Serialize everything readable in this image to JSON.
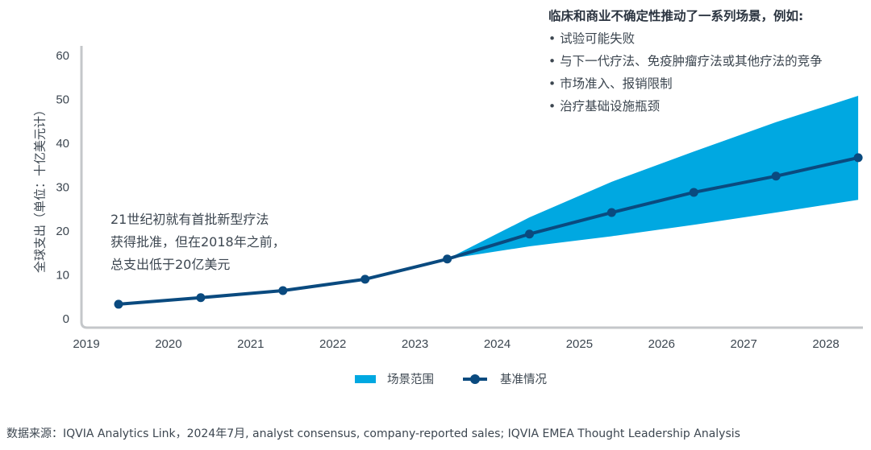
{
  "chart_data": {
    "type": "area",
    "title": "",
    "xlabel": "",
    "ylabel": "全球支出（单位：十亿美元计）",
    "ylim": [
      0,
      60
    ],
    "yticks": [
      0,
      10,
      20,
      30,
      40,
      50,
      60
    ],
    "xtick_labels": [
      "2019",
      "2020",
      "2021",
      "2022",
      "2023",
      "2024",
      "2025",
      "2026",
      "2027",
      "2028"
    ],
    "grid": false,
    "legend_position": "bottom-center",
    "series": [
      {
        "name": "基准情况",
        "type": "line",
        "color": "#0a4a7f",
        "x": [
          "2019",
          "2020",
          "2021",
          "2022",
          "2023",
          "2024",
          "2025",
          "2026",
          "2027",
          "2028"
        ],
        "values": [
          3.5,
          5.0,
          6.6,
          9.2,
          13.8,
          19.5,
          24.4,
          29.0,
          32.7,
          36.9
        ]
      },
      {
        "name": "场景范围",
        "type": "band",
        "color": "#00a8e1",
        "x": [
          "2023",
          "2024",
          "2025",
          "2026",
          "2027",
          "2028"
        ],
        "upper": [
          13.8,
          23.3,
          31.4,
          38.3,
          45.0,
          51.0
        ],
        "lower": [
          13.8,
          16.7,
          19.0,
          21.6,
          24.4,
          27.3
        ]
      }
    ],
    "annotations": {
      "callout_title": "临床和商业不确定性推动了一系列场景，例如:",
      "callout_items": [
        "试验可能失败",
        "与下一代疗法、免疫肿瘤疗法或其他疗法的竞争",
        "市场准入、报销限制",
        "治疗基础设施瓶颈"
      ],
      "note_lines": [
        "21世纪初就有首批新型疗法",
        "获得批准，但在2018年之前，",
        "总支出低于20亿美元"
      ]
    }
  },
  "legend": {
    "band_label": "场景范围",
    "line_label": "基准情况"
  },
  "source": "数据来源：IQVIA Analytics Link，2024年7月, analyst consensus, company-reported sales; IQVIA EMEA Thought Leadership Analysis"
}
